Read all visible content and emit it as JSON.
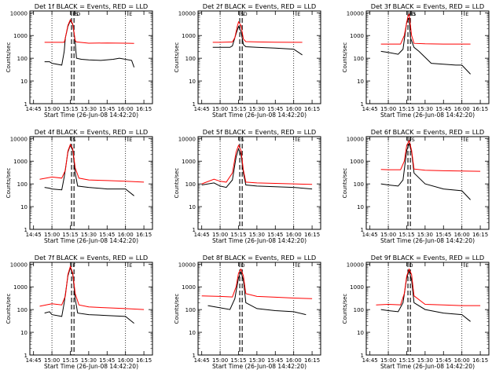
{
  "chart_data": [
    {
      "type": "line",
      "title": "Det 1f BLACK = Events, RED = LLD",
      "xlabel": "Start Time (26-Jun-08 14:42:20)",
      "ylabel": "Counts/sec",
      "xticks": [
        "14:45",
        "15:00",
        "15:15",
        "15:30",
        "15:45",
        "16:00",
        "16:15"
      ],
      "yticks": [
        "1",
        "10",
        "100",
        "1000",
        "10000"
      ],
      "yscale": "log",
      "ylim": [
        1,
        12000
      ],
      "marker_labels": [
        "F",
        "S",
        "D",
        "E"
      ],
      "series": [
        {
          "color": "#000000",
          "x": [
            "14:54",
            "14:58",
            "15:00",
            "15:08",
            "15:10",
            "15:11",
            "15:13",
            "15:15",
            "15:17",
            "15:19",
            "15:20",
            "15:24",
            "15:30",
            "15:40",
            "15:50",
            "15:55",
            "16:05",
            "16:07"
          ],
          "y": [
            70,
            70,
            60,
            50,
            200,
            800,
            2500,
            4500,
            3000,
            500,
            100,
            90,
            85,
            80,
            90,
            100,
            80,
            40
          ]
        },
        {
          "color": "#ff0000",
          "x": [
            "14:54",
            "15:00",
            "15:10",
            "15:11",
            "15:13",
            "15:15",
            "15:17",
            "15:19",
            "15:20",
            "15:30",
            "15:45",
            "16:00",
            "16:07"
          ],
          "y": [
            500,
            500,
            500,
            800,
            2800,
            5000,
            3200,
            600,
            520,
            460,
            470,
            460,
            450
          ]
        }
      ]
    },
    {
      "type": "line",
      "title": "Det 2f BLACK = Events, RED = LLD",
      "xlabel": "Start Time (26-Jun-08 14:42:20)",
      "ylabel": "Counts/sec",
      "xticks": [
        "14:45",
        "15:00",
        "15:15",
        "15:30",
        "15:45",
        "16:00",
        "16:15"
      ],
      "yticks": [
        "1",
        "10",
        "100",
        "1000",
        "10000"
      ],
      "yscale": "log",
      "ylim": [
        1,
        12000
      ],
      "marker_labels": [
        "S",
        "D",
        "E"
      ],
      "series": [
        {
          "color": "#000000",
          "x": [
            "14:54",
            "15:00",
            "15:08",
            "15:10",
            "15:13",
            "15:15",
            "15:17",
            "15:19",
            "15:21",
            "15:30",
            "15:45",
            "16:00",
            "16:07"
          ],
          "y": [
            300,
            300,
            300,
            350,
            1200,
            2500,
            1500,
            400,
            320,
            300,
            280,
            250,
            140
          ]
        },
        {
          "color": "#ff0000",
          "x": [
            "14:54",
            "15:00",
            "15:10",
            "15:12",
            "15:14",
            "15:15",
            "15:17",
            "15:19",
            "15:21",
            "15:30",
            "15:45",
            "16:00",
            "16:07"
          ],
          "y": [
            500,
            500,
            520,
            800,
            2500,
            4000,
            2800,
            700,
            540,
            520,
            510,
            500,
            500
          ]
        }
      ]
    },
    {
      "type": "line",
      "title": "Det 3f BLACK = Events, RED = LLD",
      "xlabel": "Start Time (26-Jun-08 14:42:20)",
      "ylabel": "Counts/sec",
      "xticks": [
        "14:45",
        "15:00",
        "15:15",
        "15:30",
        "15:45",
        "16:00",
        "16:15"
      ],
      "yticks": [
        "1",
        "10",
        "100",
        "1000",
        "10000"
      ],
      "yscale": "log",
      "ylim": [
        1,
        12000
      ],
      "marker_labels": [
        "F",
        "D",
        "S",
        "E"
      ],
      "series": [
        {
          "color": "#000000",
          "x": [
            "14:54",
            "15:00",
            "15:08",
            "15:12",
            "15:15",
            "15:17",
            "15:18",
            "15:21",
            "15:25",
            "15:35",
            "15:45",
            "15:55",
            "16:00",
            "16:07"
          ],
          "y": [
            200,
            180,
            150,
            250,
            4000,
            6000,
            800,
            300,
            200,
            60,
            55,
            50,
            50,
            20
          ]
        },
        {
          "color": "#ff0000",
          "x": [
            "14:54",
            "15:00",
            "15:10",
            "15:13",
            "15:16",
            "15:17",
            "15:19",
            "15:21",
            "15:30",
            "15:45",
            "16:00",
            "16:07"
          ],
          "y": [
            420,
            420,
            420,
            1000,
            7000,
            8500,
            1000,
            450,
            430,
            420,
            420,
            420
          ]
        }
      ]
    },
    {
      "type": "line",
      "title": "Det 4f BLACK = Events, RED = LLD",
      "xlabel": "Start Time (26-Jun-08 14:42:20)",
      "ylabel": "Counts/sec",
      "xticks": [
        "14:45",
        "15:00",
        "15:15",
        "15:30",
        "15:45",
        "16:00",
        "16:15"
      ],
      "yticks": [
        "1",
        "10",
        "100",
        "1000",
        "10000"
      ],
      "yscale": "log",
      "ylim": [
        1,
        12000
      ],
      "marker_labels": [
        "S",
        "E"
      ],
      "series": [
        {
          "color": "#000000",
          "x": [
            "14:54",
            "14:58",
            "15:00",
            "15:08",
            "15:10",
            "15:13",
            "15:15",
            "15:17",
            "15:19",
            "15:21",
            "15:30",
            "15:45",
            "16:00",
            "16:07"
          ],
          "y": [
            70,
            65,
            60,
            55,
            200,
            2500,
            5000,
            3000,
            300,
            80,
            70,
            60,
            60,
            30
          ]
        },
        {
          "color": "#ff0000",
          "x": [
            "14:50",
            "15:00",
            "15:08",
            "15:11",
            "15:13",
            "15:15",
            "15:17",
            "15:19",
            "15:22",
            "15:30",
            "15:45",
            "16:00",
            "16:15"
          ],
          "y": [
            160,
            200,
            180,
            400,
            2800,
            5500,
            3500,
            500,
            180,
            150,
            140,
            130,
            120
          ]
        }
      ]
    },
    {
      "type": "line",
      "title": "Det 5f BLACK = Events, RED = LLD",
      "xlabel": "Start Time (26-Jun-08 14:42:20)",
      "ylabel": "Counts/sec",
      "xticks": [
        "14:45",
        "15:00",
        "15:15",
        "15:30",
        "15:45",
        "16:00",
        "16:15"
      ],
      "yticks": [
        "1",
        "10",
        "100",
        "1000",
        "10000"
      ],
      "yscale": "log",
      "ylim": [
        1,
        12000
      ],
      "marker_labels": [
        "S",
        "E"
      ],
      "series": [
        {
          "color": "#000000",
          "x": [
            "14:45",
            "14:55",
            "15:00",
            "15:05",
            "15:10",
            "15:13",
            "15:15",
            "15:17",
            "15:19",
            "15:21",
            "15:30",
            "15:45",
            "16:00",
            "16:15"
          ],
          "y": [
            90,
            110,
            80,
            70,
            150,
            1500,
            3500,
            2000,
            300,
            90,
            80,
            75,
            70,
            60
          ]
        },
        {
          "color": "#ff0000",
          "x": [
            "14:45",
            "14:55",
            "15:00",
            "15:05",
            "15:10",
            "15:13",
            "15:15",
            "15:17",
            "15:19",
            "15:21",
            "15:30",
            "15:45",
            "16:00",
            "16:15"
          ],
          "y": [
            100,
            160,
            130,
            120,
            300,
            2500,
            5000,
            3000,
            400,
            120,
            110,
            105,
            100,
            95
          ]
        }
      ]
    },
    {
      "type": "line",
      "title": "Det 6f BLACK = Events, RED = LLD",
      "xlabel": "Start Time (26-Jun-08 14:42:20)",
      "ylabel": "Counts/sec",
      "xticks": [
        "14:45",
        "15:00",
        "15:15",
        "15:30",
        "15:45",
        "16:00",
        "16:15"
      ],
      "yticks": [
        "1",
        "10",
        "100",
        "1000",
        "10000"
      ],
      "yscale": "log",
      "ylim": [
        1,
        12000
      ],
      "marker_labels": [
        "F",
        "S",
        "E"
      ],
      "series": [
        {
          "color": "#000000",
          "x": [
            "14:54",
            "15:00",
            "15:08",
            "15:12",
            "15:15",
            "15:17",
            "15:19",
            "15:21",
            "15:30",
            "15:45",
            "16:00",
            "16:07"
          ],
          "y": [
            100,
            90,
            80,
            150,
            3000,
            6000,
            2500,
            300,
            100,
            60,
            50,
            20
          ]
        },
        {
          "color": "#ff0000",
          "x": [
            "14:54",
            "15:00",
            "15:10",
            "15:13",
            "15:15",
            "15:17",
            "15:19",
            "15:21",
            "15:30",
            "15:45",
            "16:00",
            "16:15"
          ],
          "y": [
            430,
            420,
            420,
            1000,
            5000,
            8000,
            3000,
            450,
            400,
            380,
            370,
            360
          ]
        }
      ]
    },
    {
      "type": "line",
      "title": "Det 7f BLACK = Events, RED = LLD",
      "xlabel": "Start Time (26-Jun-08 14:42:20)",
      "ylabel": "Counts/sec",
      "xticks": [
        "14:45",
        "15:00",
        "15:15",
        "15:30",
        "15:45",
        "16:00",
        "16:15"
      ],
      "yticks": [
        "1",
        "10",
        "100",
        "1000",
        "10000"
      ],
      "yscale": "log",
      "ylim": [
        1,
        12000
      ],
      "marker_labels": [
        "F",
        "E"
      ],
      "series": [
        {
          "color": "#000000",
          "x": [
            "14:54",
            "14:58",
            "15:00",
            "15:08",
            "15:10",
            "15:13",
            "15:15",
            "15:17",
            "15:19",
            "15:21",
            "15:30",
            "15:45",
            "16:00",
            "16:07"
          ],
          "y": [
            70,
            80,
            60,
            50,
            200,
            3000,
            7000,
            3500,
            300,
            70,
            60,
            55,
            50,
            25
          ]
        },
        {
          "color": "#ff0000",
          "x": [
            "14:50",
            "15:00",
            "15:08",
            "15:11",
            "15:13",
            "15:15",
            "15:17",
            "15:19",
            "15:22",
            "15:30",
            "15:45",
            "16:00",
            "16:15"
          ],
          "y": [
            140,
            180,
            160,
            400,
            3500,
            8000,
            4000,
            500,
            160,
            130,
            120,
            110,
            100
          ]
        }
      ]
    },
    {
      "type": "line",
      "title": "Det 8f BLACK = Events, RED = LLD",
      "xlabel": "Start Time (26-Jun-08 14:42:20)",
      "ylabel": "Counts/sec",
      "xticks": [
        "14:45",
        "15:00",
        "15:15",
        "15:30",
        "15:45",
        "16:00",
        "16:15"
      ],
      "yticks": [
        "1",
        "10",
        "100",
        "1000",
        "10000"
      ],
      "yscale": "log",
      "ylim": [
        1,
        12000
      ],
      "marker_labels": [
        "D",
        "E"
      ],
      "series": [
        {
          "color": "#000000",
          "x": [
            "14:50",
            "15:00",
            "15:08",
            "15:12",
            "15:15",
            "15:17",
            "15:19",
            "15:21",
            "15:30",
            "15:45",
            "16:00",
            "16:10"
          ],
          "y": [
            150,
            120,
            100,
            300,
            2500,
            4500,
            2000,
            200,
            110,
            90,
            80,
            60
          ]
        },
        {
          "color": "#ff0000",
          "x": [
            "14:45",
            "15:00",
            "15:10",
            "15:13",
            "15:15",
            "15:17",
            "15:19",
            "15:21",
            "15:30",
            "15:45",
            "16:00",
            "16:15"
          ],
          "y": [
            400,
            380,
            360,
            1000,
            4000,
            6000,
            3000,
            500,
            380,
            350,
            320,
            300
          ]
        }
      ]
    },
    {
      "type": "line",
      "title": "Det 9f BLACK = Events, RED = LLD",
      "xlabel": "Start Time (26-Jun-08 14:42:20)",
      "ylabel": "Counts/sec",
      "xticks": [
        "14:45",
        "15:00",
        "15:15",
        "15:30",
        "15:45",
        "16:00",
        "16:15"
      ],
      "yticks": [
        "1",
        "10",
        "100",
        "1000",
        "10000"
      ],
      "yscale": "log",
      "ylim": [
        1,
        12000
      ],
      "marker_labels": [
        "D",
        "E"
      ],
      "series": [
        {
          "color": "#000000",
          "x": [
            "14:54",
            "15:00",
            "15:08",
            "15:12",
            "15:15",
            "15:17",
            "15:19",
            "15:21",
            "15:30",
            "15:45",
            "16:00",
            "16:07"
          ],
          "y": [
            100,
            90,
            80,
            200,
            2500,
            5000,
            2000,
            200,
            100,
            70,
            60,
            30
          ]
        },
        {
          "color": "#ff0000",
          "x": [
            "14:50",
            "15:00",
            "15:10",
            "15:13",
            "15:15",
            "15:17",
            "15:19",
            "15:21",
            "15:30",
            "15:45",
            "16:00",
            "16:15"
          ],
          "y": [
            160,
            170,
            160,
            500,
            3000,
            6000,
            3500,
            400,
            170,
            160,
            150,
            150
          ]
        }
      ]
    }
  ]
}
